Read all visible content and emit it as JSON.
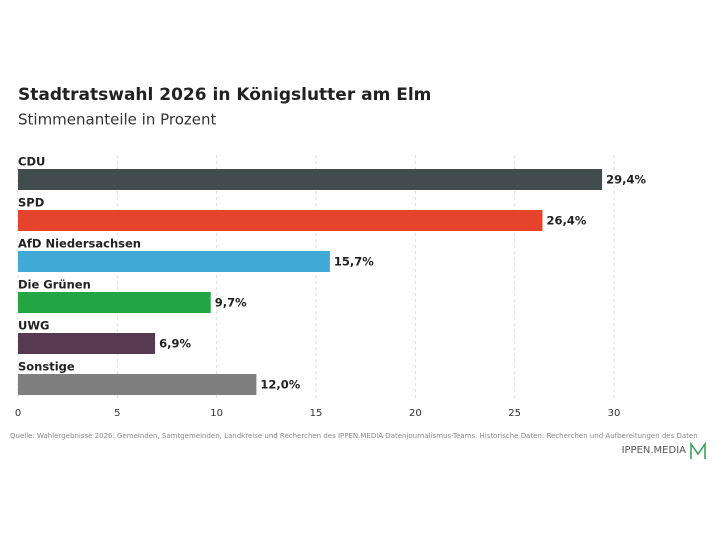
{
  "chart_data": {
    "type": "bar",
    "orientation": "horizontal",
    "title": "Stadtratswahl 2026 in Königslutter am Elm",
    "subtitle": "Stimmenanteile in Prozent",
    "categories": [
      "CDU",
      "SPD",
      "AfD Niedersachsen",
      "Die Grünen",
      "UWG",
      "Sonstige"
    ],
    "values": [
      29.4,
      26.4,
      15.7,
      9.7,
      6.9,
      12.0
    ],
    "value_labels": [
      "29,4%",
      "26,4%",
      "15,7%",
      "9,7%",
      "6,9%",
      "12,0%"
    ],
    "colors": [
      "#424c4e",
      "#e5432b",
      "#41a9d5",
      "#22a542",
      "#573a52",
      "#7f7f7f"
    ],
    "xlim": [
      0,
      30
    ],
    "xticks": [
      0,
      5,
      10,
      15,
      20,
      25,
      30
    ],
    "grid": true,
    "source": "Quelle: Wahlergebnisse 2026: Gemeinden, Samtgemeinden, Landkreise und Recherchen des IPPEN.MEDIA Datenjournalismus-Teams. Historische Daten: Recherchen und Aufbereitungen des Daten",
    "logo": "IPPEN.MEDIA"
  }
}
